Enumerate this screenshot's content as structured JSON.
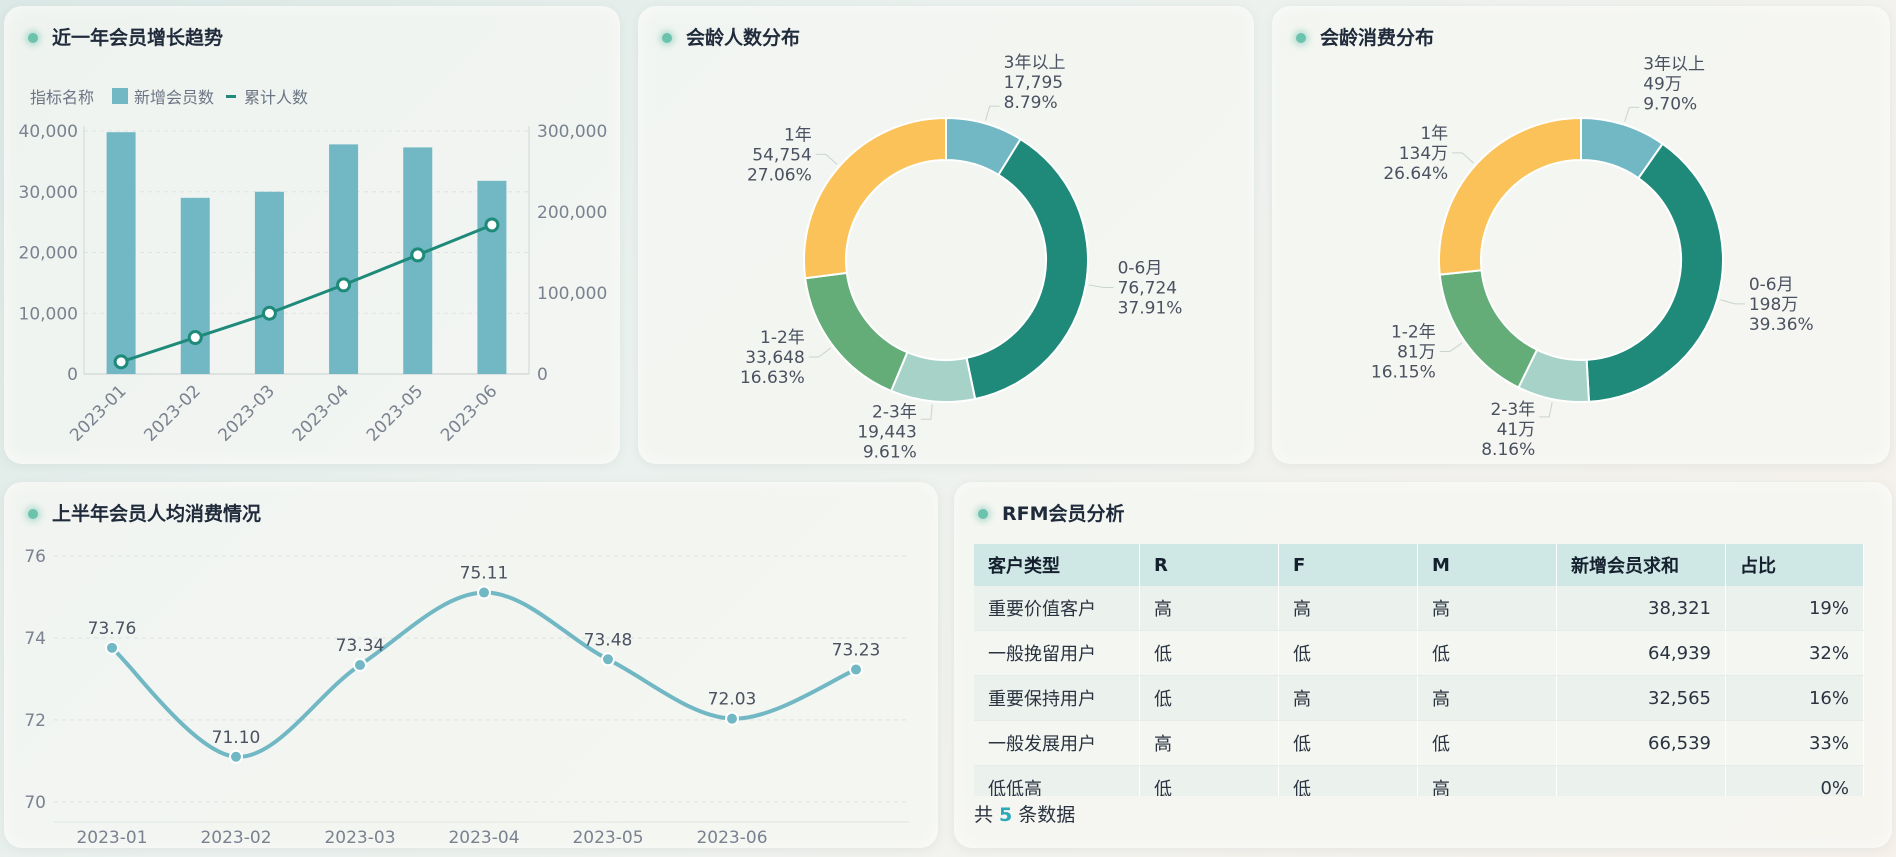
{
  "panel1": {
    "title": "近一年会员增长趋势",
    "legend_prefix": "指标名称",
    "legend_bar": "新增会员数",
    "legend_line": "累计人数"
  },
  "panel2": {
    "title": "会龄人数分布"
  },
  "panel3": {
    "title": "会龄消费分布"
  },
  "panel4": {
    "title": "上半年会员人均消费情况"
  },
  "panel5": {
    "title": "RFM会员分析",
    "columns": [
      "客户类型",
      "R",
      "F",
      "M",
      "新增会员求和",
      "占比"
    ],
    "rows": [
      [
        "重要价值客户",
        "高",
        "高",
        "高",
        "38,321",
        "19%"
      ],
      [
        "一般挽留用户",
        "低",
        "低",
        "低",
        "64,939",
        "32%"
      ],
      [
        "重要保持用户",
        "低",
        "高",
        "高",
        "32,565",
        "16%"
      ],
      [
        "一般发展用户",
        "高",
        "低",
        "低",
        "66,539",
        "33%"
      ],
      [
        "低低高",
        "低",
        "低",
        "高",
        "",
        "0%"
      ]
    ],
    "footer_prefix": "共",
    "footer_count": "5",
    "footer_suffix": "条数据"
  },
  "colors": {
    "bar": "#71b8c4",
    "line": "#1f8a7a",
    "pie": [
      "#71b8c4",
      "#1f8a7a",
      "#a6d2c8",
      "#64ad78",
      "#fbc25a"
    ],
    "spline": "#71b8c4"
  },
  "chart_data": [
    {
      "type": "bar",
      "categories": [
        "2023-01",
        "2023-02",
        "2023-03",
        "2023-04",
        "2023-05",
        "2023-06"
      ],
      "series": [
        {
          "name": "新增会员数",
          "type": "bar",
          "axis": "left",
          "values": [
            39800,
            29000,
            30000,
            37800,
            37300,
            31800
          ]
        },
        {
          "name": "累计人数",
          "type": "line",
          "axis": "right",
          "values": [
            15000,
            45000,
            75000,
            110000,
            147000,
            184000
          ]
        }
      ],
      "left_ticks": [
        "0",
        "10,000",
        "20,000",
        "30,000",
        "40,000"
      ],
      "left_ylim": [
        0,
        40000
      ],
      "right_ticks": [
        "0",
        "100,000",
        "200,000",
        "300,000"
      ],
      "right_ylim": [
        0,
        300000
      ]
    },
    {
      "type": "pie",
      "slices": [
        {
          "name": "3年以上",
          "value": 17795,
          "value_label": "17,795",
          "pct": "8.79%"
        },
        {
          "name": "0-6月",
          "value": 76724,
          "value_label": "76,724",
          "pct": "37.91%"
        },
        {
          "name": "2-3年",
          "value": 19443,
          "value_label": "19,443",
          "pct": "9.61%"
        },
        {
          "name": "1-2年",
          "value": 33648,
          "value_label": "33,648",
          "pct": "16.63%"
        },
        {
          "name": "1年",
          "value": 54754,
          "value_label": "54,754",
          "pct": "27.06%"
        }
      ]
    },
    {
      "type": "pie",
      "slices": [
        {
          "name": "3年以上",
          "value": 49,
          "value_label": "49万",
          "pct": "9.70%"
        },
        {
          "name": "0-6月",
          "value": 198,
          "value_label": "198万",
          "pct": "39.36%"
        },
        {
          "name": "2-3年",
          "value": 41,
          "value_label": "41万",
          "pct": "8.16%"
        },
        {
          "name": "1-2年",
          "value": 81,
          "value_label": "81万",
          "pct": "16.15%"
        },
        {
          "name": "1年",
          "value": 134,
          "value_label": "134万",
          "pct": "26.64%"
        }
      ]
    },
    {
      "type": "line",
      "categories": [
        "2023-01",
        "2023-02",
        "2023-03",
        "2023-04",
        "2023-05",
        "2023-06",
        ""
      ],
      "values": [
        73.76,
        71.1,
        73.34,
        75.11,
        73.48,
        72.03,
        73.23
      ],
      "value_labels": [
        "73.76",
        "71.10",
        "73.34",
        "75.11",
        "73.48",
        "72.03",
        "73.23"
      ],
      "ticks": [
        "70",
        "72",
        "74",
        "76"
      ],
      "ylim": [
        69.8,
        76.1
      ]
    }
  ]
}
